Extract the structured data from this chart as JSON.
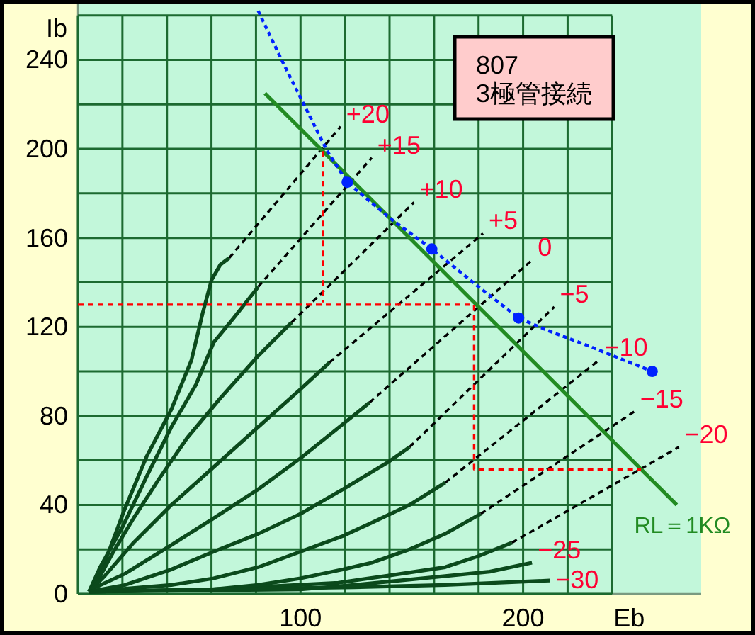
{
  "chart_data": {
    "type": "line",
    "title": "807",
    "subtitle": "3極管接続",
    "xlabel": "Eb",
    "ylabel": "Ib",
    "xlim": [
      0,
      280
    ],
    "ylim": [
      0,
      265
    ],
    "xticks": [
      {
        "value": 0,
        "label": null
      },
      {
        "value": 20,
        "label": null
      },
      {
        "value": 40,
        "label": null
      },
      {
        "value": 60,
        "label": null
      },
      {
        "value": 80,
        "label": null
      },
      100,
      {
        "value": 120,
        "label": null
      },
      {
        "value": 140,
        "label": null
      },
      {
        "value": 160,
        "label": null
      },
      {
        "value": 180,
        "label": null
      },
      200,
      {
        "value": 220,
        "label": null
      },
      {
        "value": 240,
        "label": null
      }
    ],
    "yticks": [
      0,
      {
        "value": 20,
        "label": null
      },
      40,
      {
        "value": 60,
        "label": null
      },
      80,
      {
        "value": 100,
        "label": null
      },
      120,
      {
        "value": 140,
        "label": null
      },
      160,
      {
        "value": 180,
        "label": null
      },
      200,
      {
        "value": 220,
        "label": null
      },
      240,
      {
        "value": 260,
        "label": null
      }
    ],
    "grid": true,
    "series": [
      {
        "color": "#0b4a1c",
        "x": [
          5,
          12,
          21,
          31,
          42,
          51,
          56,
          60,
          64,
          68
        ],
        "values": [
          1,
          14,
          38,
          62,
          83,
          105,
          126,
          141,
          148,
          151
        ]
      },
      {
        "color": "#000000",
        "line_style": "dashed",
        "x": [
          68,
          118
        ],
        "values": [
          151,
          210
        ]
      },
      {
        "color": "#0b4a1c",
        "x": [
          5,
          10,
          20,
          31,
          42,
          53,
          61,
          70,
          81
        ],
        "values": [
          1,
          12,
          30,
          53,
          75,
          94,
          113,
          124,
          138
        ]
      },
      {
        "color": "#000000",
        "line_style": "dashed",
        "x": [
          81,
          132
        ],
        "values": [
          138,
          196
        ]
      },
      {
        "color": "#0b4a1c",
        "x": [
          5,
          10,
          16,
          25,
          36,
          49,
          64,
          81,
          96
        ],
        "values": [
          1,
          8,
          19,
          34,
          51,
          70,
          88,
          107,
          122
        ]
      },
      {
        "color": "#000000",
        "line_style": "dashed",
        "x": [
          96,
          151
        ],
        "values": [
          122,
          176
        ]
      },
      {
        "color": "#0b4a1c",
        "x": [
          5,
          12,
          25,
          42,
          61,
          81,
          100,
          113
        ],
        "values": [
          1,
          8,
          23,
          40,
          57,
          75,
          92,
          104
        ]
      },
      {
        "color": "#000000",
        "line_style": "dashed",
        "x": [
          113,
          182
        ],
        "values": [
          104,
          162
        ]
      },
      {
        "color": "#0b4a1c",
        "x": [
          5,
          8,
          21,
          42,
          61,
          81,
          100,
          115,
          131
        ],
        "values": [
          1,
          3,
          9,
          22,
          34,
          47,
          61,
          73,
          86
        ]
      },
      {
        "color": "#000000",
        "line_style": "dashed",
        "x": [
          131,
          204
        ],
        "values": [
          86,
          150
        ]
      },
      {
        "color": "#0b4a1c",
        "x": [
          5,
          21,
          42,
          61,
          81,
          100,
          119,
          139,
          149
        ],
        "values": [
          1,
          4,
          11,
          19,
          27,
          36,
          47,
          59,
          66
        ]
      },
      {
        "color": "#000000",
        "line_style": "dashed",
        "x": [
          149,
          214
        ],
        "values": [
          66,
          129
        ]
      },
      {
        "color": "#0b4a1c",
        "x": [
          5,
          42,
          61,
          81,
          100,
          119,
          132,
          149,
          165
        ],
        "values": [
          1,
          4,
          7,
          12,
          19,
          26,
          32,
          40,
          50
        ]
      },
      {
        "color": "#000000",
        "line_style": "dashed",
        "x": [
          165,
          234
        ],
        "values": [
          50,
          105
        ]
      },
      {
        "color": "#0b4a1c",
        "x": [
          5,
          60,
          81,
          100,
          119,
          132,
          149,
          165,
          181
        ],
        "values": [
          1,
          2,
          4,
          7,
          11,
          14,
          20,
          27,
          36
        ]
      },
      {
        "color": "#000000",
        "line_style": "dashed",
        "x": [
          181,
          250
        ],
        "values": [
          36,
          82
        ]
      },
      {
        "color": "#0b4a1c",
        "x": [
          5,
          60,
          117,
          138,
          165,
          180,
          195
        ],
        "values": [
          1,
          2,
          5,
          8,
          12,
          17,
          23
        ]
      },
      {
        "color": "#000000",
        "line_style": "dashed",
        "x": [
          195,
          270
        ],
        "values": [
          23,
          66
        ]
      },
      {
        "color": "#0b4a1c",
        "x": [
          5,
          100,
          124,
          165,
          185,
          204
        ],
        "values": [
          1,
          2,
          4,
          8,
          10,
          14
        ]
      },
      {
        "color": "#0b4a1c",
        "x": [
          5,
          60,
          124,
          165,
          212
        ],
        "values": [
          1,
          2,
          3,
          4,
          6
        ]
      },
      {
        "name": "RL＝1KΩ",
        "color": "#228b22",
        "x": [
          84,
          269
        ],
        "values": [
          225,
          40
        ]
      },
      {
        "color": "#0022ff",
        "line_style": "dotted",
        "x": [
          81,
          92,
          101,
          112,
          121,
          140,
          159,
          180,
          198,
          212,
          228,
          258
        ],
        "values": [
          262,
          239,
          221,
          199,
          185,
          169,
          155,
          138,
          124,
          118,
          112,
          100
        ]
      },
      {
        "type": "scatter",
        "marker": "circle",
        "color": "#0022ff",
        "x": [
          121,
          159,
          198,
          258
        ],
        "values": [
          185,
          155,
          124,
          100
        ]
      },
      {
        "color": "#ff0000",
        "line_style": "dashed",
        "x": [
          110,
          110
        ],
        "values": [
          199,
          131
        ]
      },
      {
        "color": "#ff0000",
        "line_style": "dashed",
        "x": [
          0,
          178,
          178,
          253
        ],
        "values": [
          130,
          130,
          56,
          56
        ]
      }
    ],
    "annotations": [
      {
        "text": "+20",
        "x": 118,
        "y": 210
      },
      {
        "text": "+15",
        "x": 132,
        "y": 196
      },
      {
        "text": "+10",
        "x": 151,
        "y": 176
      },
      {
        "text": "+5",
        "x": 182,
        "y": 162
      },
      {
        "text": "0",
        "x": 204,
        "y": 150
      },
      {
        "text": "−5",
        "x": 214,
        "y": 129
      },
      {
        "text": "−10",
        "x": 234,
        "y": 105
      },
      {
        "text": "−15",
        "x": 250,
        "y": 82
      },
      {
        "text": "−20",
        "x": 270,
        "y": 66
      },
      {
        "text": "−25",
        "x": 204,
        "y": 14
      },
      {
        "text": "−30",
        "x": 212,
        "y": 6
      }
    ]
  }
}
